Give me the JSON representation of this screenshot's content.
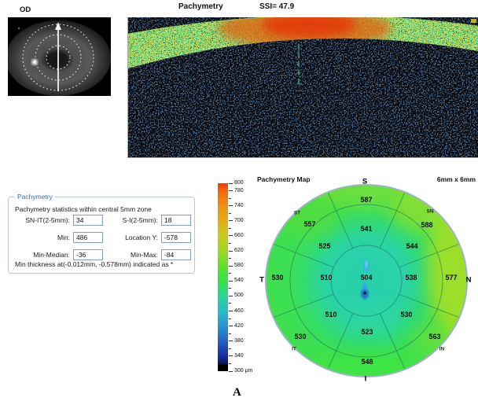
{
  "header": {
    "eye": "OD",
    "title": "Pachymetry",
    "ssi": "SSI= 47.9"
  },
  "stats_panel": {
    "title": "Pachymetry",
    "subtitle": "Pachymetry statistics within central 5mm zone",
    "fields": [
      {
        "key": "sn-it",
        "label": "SN-IT(2-5mm):",
        "value": "34"
      },
      {
        "key": "s-i",
        "label": "S-I(2-5mm):",
        "value": "18"
      },
      {
        "key": "min",
        "label": "Min:",
        "value": "486"
      },
      {
        "key": "location-y",
        "label": "Location Y:",
        "value": "-578"
      },
      {
        "key": "min-median",
        "label": "Min-Median:",
        "value": "-36"
      },
      {
        "key": "min-max",
        "label": "Min-Max:",
        "value": "-84"
      }
    ],
    "footnote": "Min thickness at(-0.012mm, -0.578mm) indicated as *"
  },
  "colorbar": {
    "unit": "μm",
    "max": 800,
    "min": 300,
    "labeled_values": [
      800,
      780,
      740,
      700,
      660,
      620,
      580,
      540,
      500,
      460,
      420,
      380,
      340,
      300
    ]
  },
  "map": {
    "title": "Pachymetry Map",
    "size_label": "6mm x 6mm",
    "compass": {
      "S": "S",
      "SN": "SN",
      "N": "N",
      "IN": "IN",
      "I": "I",
      "IT": "IT",
      "T": "T",
      "ST": "ST"
    },
    "values": {
      "center": "504",
      "middle": {
        "S": "541",
        "SN": "544",
        "N": "538",
        "IN": "530",
        "I": "523",
        "IT": "510",
        "T": "510",
        "ST": "525"
      },
      "outer": {
        "S": "587",
        "SN": "588",
        "N": "577",
        "IN": "563",
        "I": "548",
        "IT": "530",
        "T": "530",
        "ST": "557"
      }
    },
    "min_marker": "*"
  },
  "figure_label": "A"
}
